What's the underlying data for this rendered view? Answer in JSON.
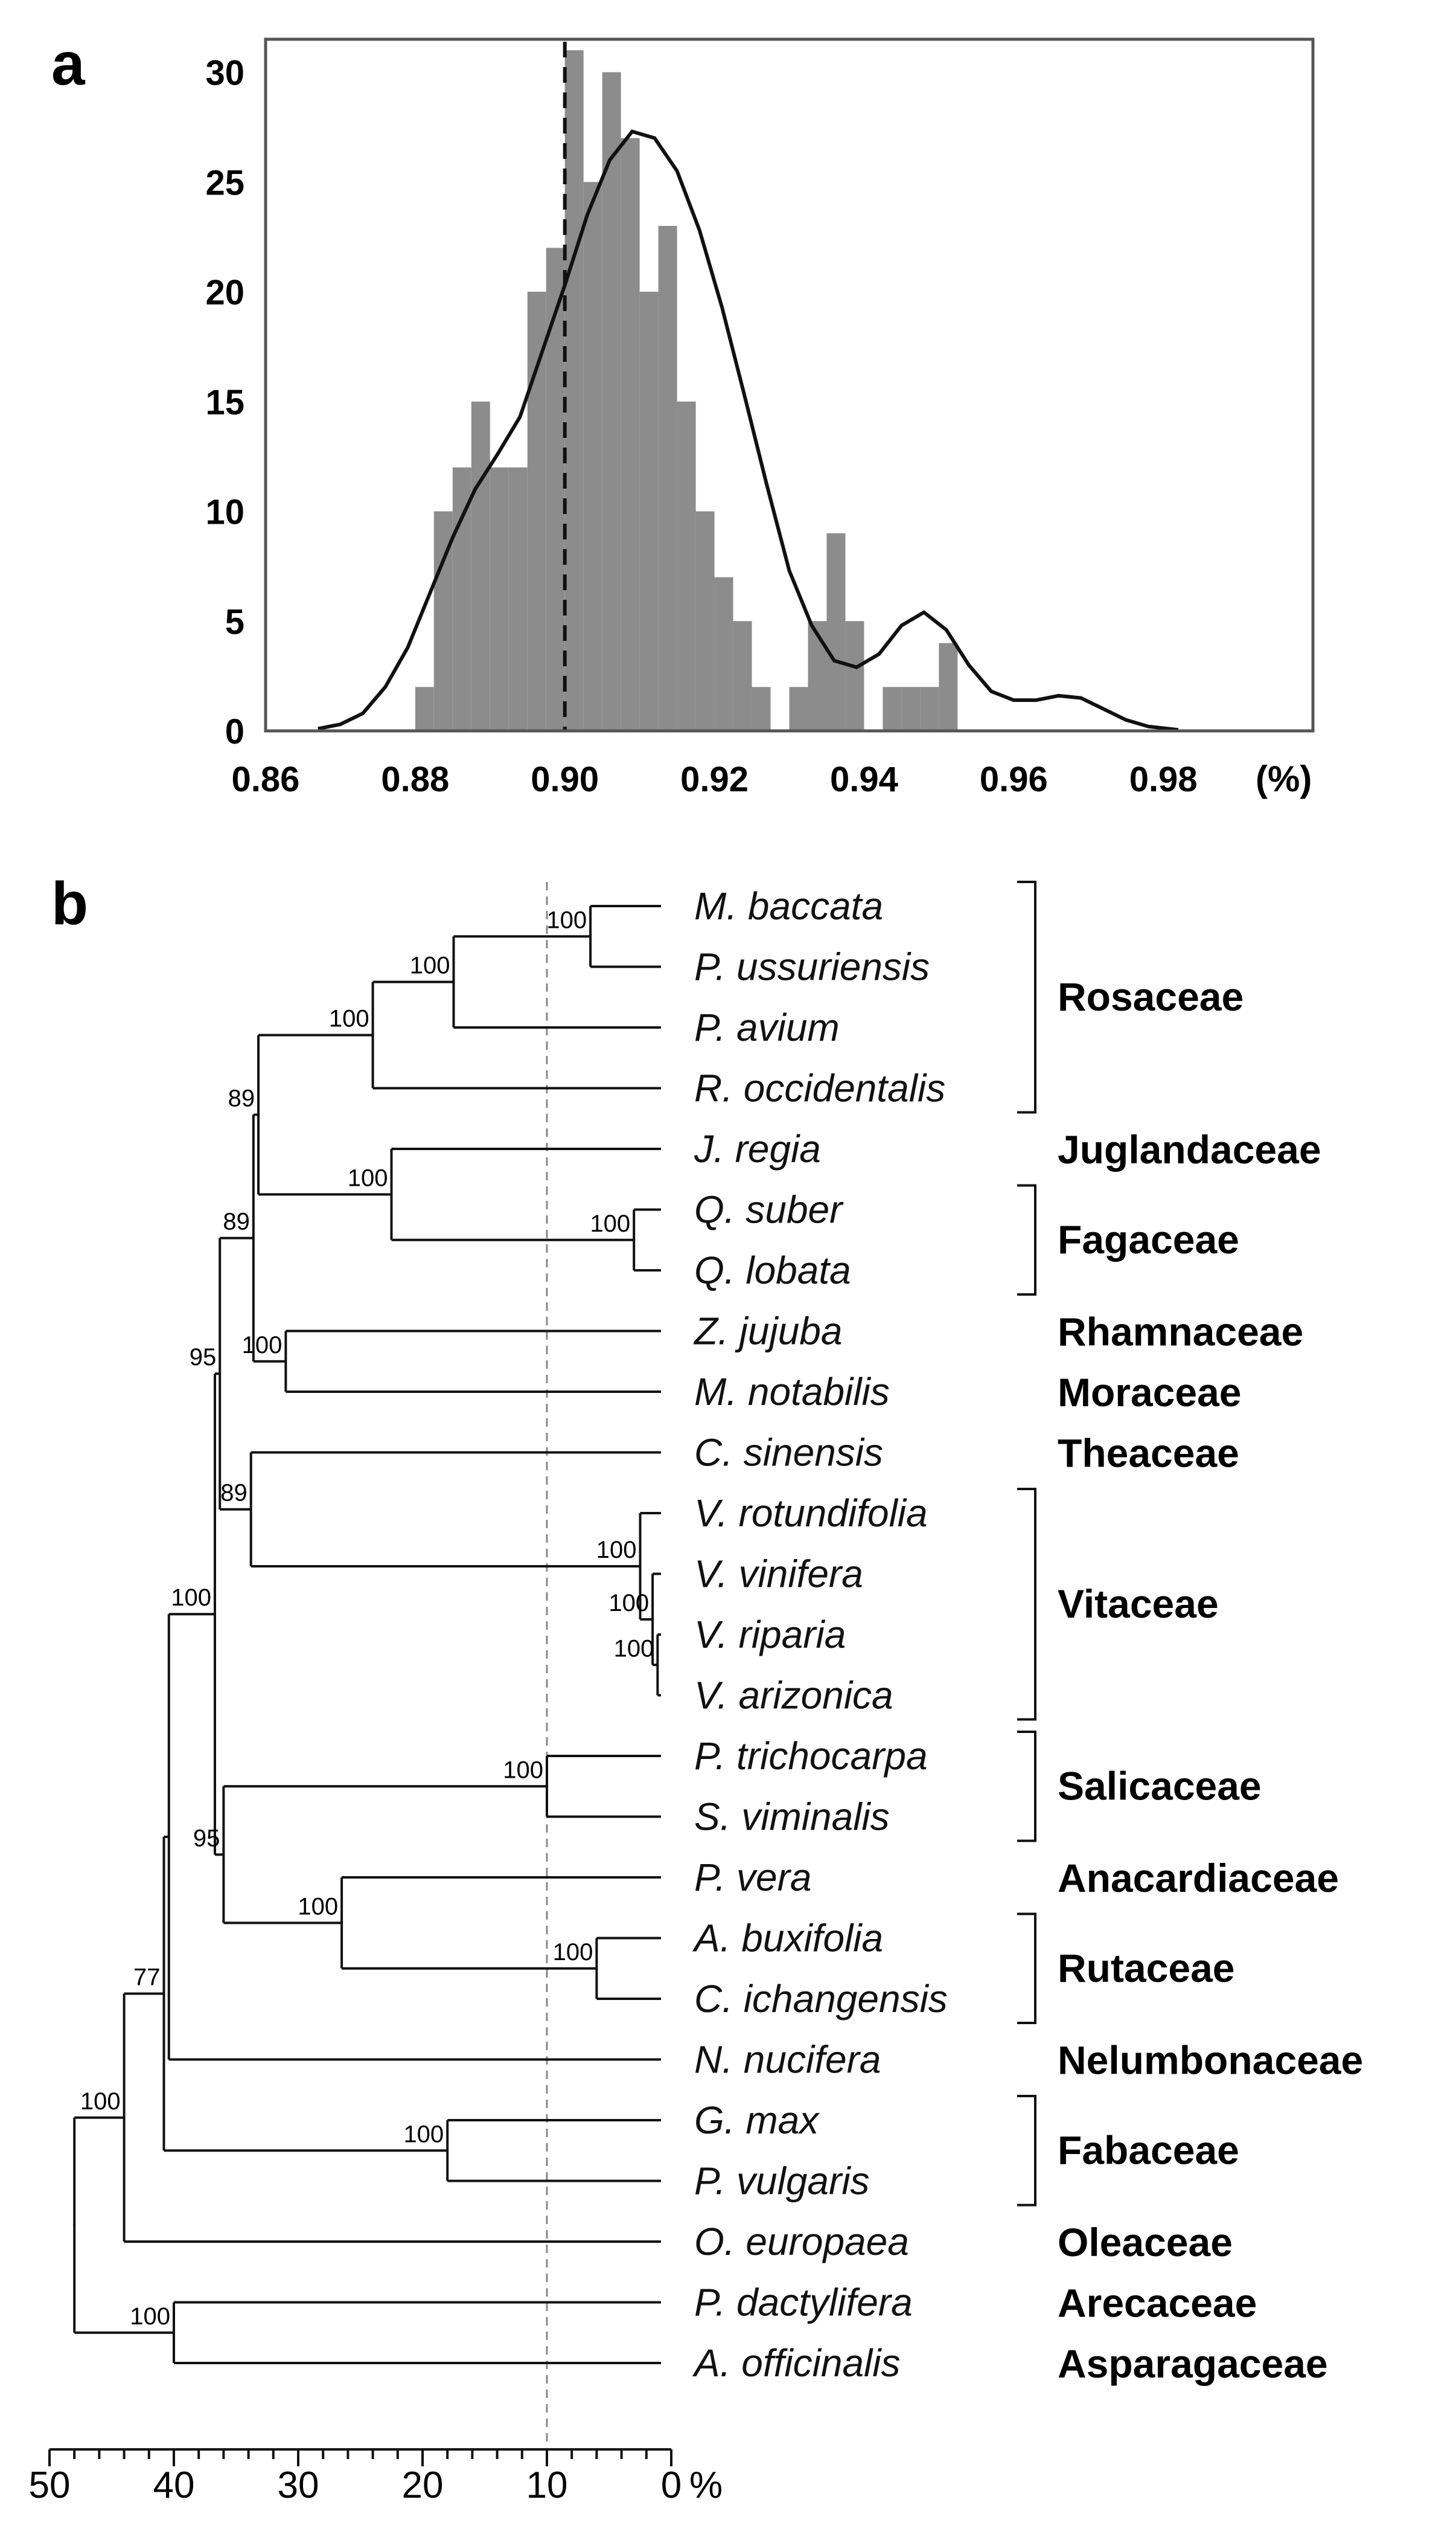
{
  "chart_data": [
    {
      "type": "bar",
      "panel_label": "a",
      "title": "",
      "xlabel": "",
      "x_unit": "(%)",
      "ylabel": "",
      "xlim": [
        0.86,
        1.0
      ],
      "ylim": [
        0,
        31.5
      ],
      "x_ticks": [
        "0.86",
        "0.88",
        "0.90",
        "0.92",
        "0.94",
        "0.96",
        "0.98"
      ],
      "y_ticks": [
        "0",
        "5",
        "10",
        "15",
        "20",
        "25",
        "30"
      ],
      "bin_width": 0.0025,
      "bins": [
        {
          "x0": 0.88,
          "count": 2
        },
        {
          "x0": 0.8825,
          "count": 10
        },
        {
          "x0": 0.885,
          "count": 12
        },
        {
          "x0": 0.8875,
          "count": 15
        },
        {
          "x0": 0.89,
          "count": 12
        },
        {
          "x0": 0.8925,
          "count": 12
        },
        {
          "x0": 0.895,
          "count": 20
        },
        {
          "x0": 0.8975,
          "count": 22
        },
        {
          "x0": 0.9,
          "count": 31
        },
        {
          "x0": 0.9025,
          "count": 25
        },
        {
          "x0": 0.905,
          "count": 30
        },
        {
          "x0": 0.9075,
          "count": 27
        },
        {
          "x0": 0.91,
          "count": 20
        },
        {
          "x0": 0.9125,
          "count": 23
        },
        {
          "x0": 0.915,
          "count": 15
        },
        {
          "x0": 0.9175,
          "count": 10
        },
        {
          "x0": 0.92,
          "count": 7
        },
        {
          "x0": 0.9225,
          "count": 5
        },
        {
          "x0": 0.925,
          "count": 2
        },
        {
          "x0": 0.93,
          "count": 2
        },
        {
          "x0": 0.9325,
          "count": 5
        },
        {
          "x0": 0.935,
          "count": 9
        },
        {
          "x0": 0.9375,
          "count": 5
        },
        {
          "x0": 0.9425,
          "count": 2
        },
        {
          "x0": 0.945,
          "count": 2
        },
        {
          "x0": 0.9475,
          "count": 2
        },
        {
          "x0": 0.95,
          "count": 4
        }
      ],
      "density_curve": [
        [
          0.867,
          0.1
        ],
        [
          0.87,
          0.3
        ],
        [
          0.873,
          0.8
        ],
        [
          0.876,
          2.0
        ],
        [
          0.879,
          3.8
        ],
        [
          0.882,
          6.3
        ],
        [
          0.885,
          8.8
        ],
        [
          0.888,
          11.0
        ],
        [
          0.891,
          12.6
        ],
        [
          0.894,
          14.3
        ],
        [
          0.897,
          17.3
        ],
        [
          0.9,
          20.3
        ],
        [
          0.903,
          23.5
        ],
        [
          0.906,
          26.0
        ],
        [
          0.909,
          27.3
        ],
        [
          0.912,
          27.0
        ],
        [
          0.915,
          25.5
        ],
        [
          0.918,
          22.8
        ],
        [
          0.921,
          19.3
        ],
        [
          0.924,
          15.3
        ],
        [
          0.927,
          11.2
        ],
        [
          0.93,
          7.3
        ],
        [
          0.933,
          4.8
        ],
        [
          0.936,
          3.2
        ],
        [
          0.939,
          2.9
        ],
        [
          0.942,
          3.5
        ],
        [
          0.945,
          4.8
        ],
        [
          0.948,
          5.4
        ],
        [
          0.951,
          4.6
        ],
        [
          0.954,
          3.0
        ],
        [
          0.957,
          1.8
        ],
        [
          0.96,
          1.4
        ],
        [
          0.963,
          1.4
        ],
        [
          0.966,
          1.6
        ],
        [
          0.969,
          1.5
        ],
        [
          0.972,
          1.0
        ],
        [
          0.975,
          0.5
        ],
        [
          0.978,
          0.2
        ],
        [
          0.982,
          0.05
        ]
      ],
      "reference_line": {
        "x": 0.9,
        "style": "dashed"
      }
    },
    {
      "type": "dendrogram",
      "panel_label": "b",
      "x_axis_ticks": [
        "50",
        "40",
        "30",
        "20",
        "10",
        "0"
      ],
      "x_unit": "%",
      "xlim": [
        50,
        0
      ],
      "reference_line": {
        "x": 10,
        "style": "dashed"
      },
      "leaves": [
        "M. baccata",
        "P. ussuriensis",
        "P. avium",
        "R. occidentalis",
        "J. regia",
        "Q. suber",
        "Q. lobata",
        "Z. jujuba",
        "M. notabilis",
        "C. sinensis",
        "V. rotundifolia",
        "V. vinifera",
        "V. riparia",
        "V. arizonica",
        "P. trichocarpa",
        "S. viminalis",
        "P. vera",
        "A. buxifolia",
        "C. ichangensis",
        "N. nucifera",
        "G. max",
        "P. vulgaris",
        "O. europaea",
        "P. dactylifera",
        "A. officinalis"
      ],
      "internal_nodes": [
        {
          "id": "N1",
          "children": [
            "L0",
            "L1"
          ],
          "height": 6.5,
          "support": "100"
        },
        {
          "id": "N2",
          "children": [
            "N1",
            "L2"
          ],
          "height": 17.5,
          "support": "100"
        },
        {
          "id": "N3",
          "children": [
            "N2",
            "L3"
          ],
          "height": 24,
          "support": "100"
        },
        {
          "id": "N4",
          "children": [
            "L5",
            "L6"
          ],
          "height": 3,
          "support": "100"
        },
        {
          "id": "N5",
          "children": [
            "L4",
            "N4"
          ],
          "height": 22.5,
          "support": "100"
        },
        {
          "id": "N6",
          "children": [
            "N3",
            "N5"
          ],
          "height": 33.2,
          "support": "89"
        },
        {
          "id": "N7",
          "children": [
            "L7",
            "L8"
          ],
          "height": 31,
          "support": "100"
        },
        {
          "id": "N8",
          "children": [
            "N6",
            "N7"
          ],
          "height": 33.6,
          "support": "89"
        },
        {
          "id": "N9",
          "children": [
            "L12",
            "L13"
          ],
          "height": 1.1,
          "support": "100"
        },
        {
          "id": "N10",
          "children": [
            "L11",
            "N9"
          ],
          "height": 1.5,
          "support": "100"
        },
        {
          "id": "N11",
          "children": [
            "L10",
            "N10"
          ],
          "height": 2.5,
          "support": "100"
        },
        {
          "id": "N12",
          "children": [
            "L9",
            "N11"
          ],
          "height": 33.8,
          "support": "89"
        },
        {
          "id": "N13",
          "children": [
            "N8",
            "N12"
          ],
          "height": 36.3,
          "support": "95"
        },
        {
          "id": "N14",
          "children": [
            "L14",
            "L15"
          ],
          "height": 10,
          "support": "100"
        },
        {
          "id": "N15",
          "children": [
            "L17",
            "L18"
          ],
          "height": 6,
          "support": "100"
        },
        {
          "id": "N16",
          "children": [
            "L16",
            "N15"
          ],
          "height": 26.5,
          "support": "100"
        },
        {
          "id": "N17",
          "children": [
            "N14",
            "N16"
          ],
          "height": 36,
          "support": "95"
        },
        {
          "id": "N18",
          "children": [
            "N13",
            "N17"
          ],
          "height": 36.7,
          "support": "100"
        },
        {
          "id": "N19",
          "children": [
            "N18",
            "L19"
          ],
          "height": 40.4,
          "support": ""
        },
        {
          "id": "N20",
          "children": [
            "L20",
            "L21"
          ],
          "height": 18,
          "support": "100"
        },
        {
          "id": "N21",
          "children": [
            "N19",
            "N20"
          ],
          "height": 40.8,
          "support": "77"
        },
        {
          "id": "N22",
          "children": [
            "N21",
            "L22"
          ],
          "height": 44,
          "support": "100"
        },
        {
          "id": "N23",
          "children": [
            "L23",
            "L24"
          ],
          "height": 40,
          "support": "100"
        },
        {
          "id": "N24",
          "children": [
            "N22",
            "N23"
          ],
          "height": 48,
          "support": ""
        }
      ],
      "families": [
        {
          "name": "Rosaceae",
          "from": 0,
          "to": 3
        },
        {
          "name": "Juglandaceae",
          "from": 4,
          "to": 4
        },
        {
          "name": "Fagaceae",
          "from": 5,
          "to": 6
        },
        {
          "name": "Rhamnaceae",
          "from": 7,
          "to": 7
        },
        {
          "name": "Moraceae",
          "from": 8,
          "to": 8
        },
        {
          "name": "Theaceae",
          "from": 9,
          "to": 9
        },
        {
          "name": "Vitaceae",
          "from": 10,
          "to": 13
        },
        {
          "name": "Salicaceae",
          "from": 14,
          "to": 15
        },
        {
          "name": "Anacardiaceae",
          "from": 16,
          "to": 16
        },
        {
          "name": "Rutaceae",
          "from": 17,
          "to": 18
        },
        {
          "name": "Nelumbonaceae",
          "from": 19,
          "to": 19
        },
        {
          "name": "Fabaceae",
          "from": 20,
          "to": 21
        },
        {
          "name": "Oleaceae",
          "from": 22,
          "to": 22
        },
        {
          "name": "Arecaceae",
          "from": 23,
          "to": 23
        },
        {
          "name": "Asparagaceae",
          "from": 24,
          "to": 24
        }
      ]
    }
  ]
}
